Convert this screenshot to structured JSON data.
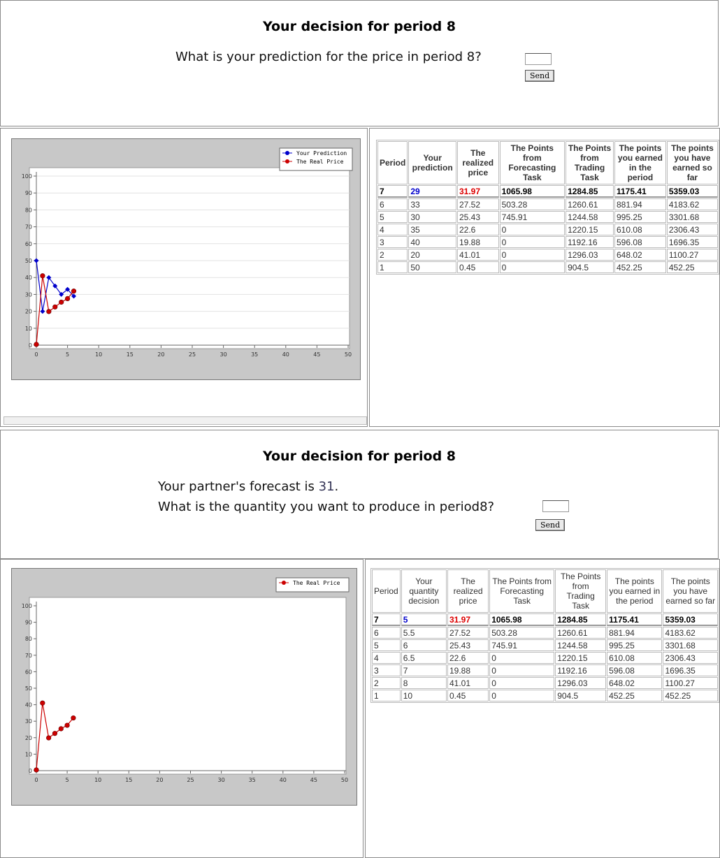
{
  "panels": [
    {
      "heading": "Your decision for period 8",
      "question": "What is your prediction for the price in period 8?",
      "button": "Send",
      "chart": {
        "type": "line",
        "x": [
          0,
          1,
          2,
          3,
          4,
          5,
          6
        ],
        "series": [
          {
            "name": "Your Prediction",
            "color": "#0000cc",
            "values": [
              50,
              20,
              40,
              35,
              30,
              33,
              29
            ]
          },
          {
            "name": "The Real Price",
            "color": "#cc0000",
            "values": [
              0.45,
              41.01,
              19.88,
              22.6,
              25.43,
              27.52,
              31.97
            ]
          }
        ],
        "xlim": [
          0,
          50
        ],
        "xticks": [
          0,
          5,
          10,
          15,
          20,
          25,
          30,
          35,
          40,
          45,
          50
        ],
        "ylim": [
          0,
          100
        ],
        "yticks": [
          0,
          10,
          20,
          30,
          40,
          50,
          60,
          70,
          80,
          90,
          100
        ],
        "grid": true,
        "legend": "upper right"
      },
      "table": {
        "headers": [
          "Period",
          "Your prediction",
          "The realized price",
          "The Points from Forecasting Task",
          "The Points from Trading Task",
          "The points you earned in the period",
          "The points you have earned so far"
        ],
        "rows": [
          [
            7,
            29,
            31.97,
            1065.98,
            1284.85,
            1175.41,
            5359.03
          ],
          [
            6,
            33,
            27.52,
            503.28,
            1260.61,
            881.94,
            4183.62
          ],
          [
            5,
            30,
            25.43,
            745.91,
            1244.58,
            995.25,
            3301.68
          ],
          [
            4,
            35,
            22.6,
            0,
            1220.15,
            610.08,
            2306.43
          ],
          [
            3,
            40,
            19.88,
            0,
            1192.16,
            596.08,
            1696.35
          ],
          [
            2,
            20,
            41.01,
            0,
            1296.03,
            648.02,
            1100.27
          ],
          [
            1,
            50,
            0.45,
            0,
            904.5,
            452.25,
            452.25
          ]
        ]
      }
    },
    {
      "heading": "Your decision for period 8",
      "forecast_text": "Your partner's forecast is",
      "forecast_value": 31,
      "forecast_end": ".",
      "question": "What is the quantity you want to produce in period8?",
      "button": "Send",
      "chart": {
        "type": "line",
        "x": [
          0,
          1,
          2,
          3,
          4,
          5,
          6
        ],
        "series": [
          {
            "name": "The Real Price",
            "color": "#cc0000",
            "values": [
              0.45,
              41.01,
              19.88,
              22.6,
              25.43,
              27.52,
              31.97
            ]
          }
        ],
        "xlim": [
          0,
          50
        ],
        "xticks": [
          0,
          5,
          10,
          15,
          20,
          25,
          30,
          35,
          40,
          45,
          50
        ],
        "ylim": [
          0,
          100
        ],
        "yticks": [
          0,
          10,
          20,
          30,
          40,
          50,
          60,
          70,
          80,
          90,
          100
        ],
        "grid": false,
        "legend": "upper right"
      },
      "table": {
        "headers": [
          "Period",
          "Your quantity decision",
          "The realized price",
          "The Points from Forecasting Task",
          "The Points from Trading Task",
          "The points you earned in the period",
          "The points you have earned so far"
        ],
        "rows": [
          [
            7,
            5,
            31.97,
            1065.98,
            1284.85,
            1175.41,
            5359.03
          ],
          [
            6,
            5.5,
            27.52,
            503.28,
            1260.61,
            881.94,
            4183.62
          ],
          [
            5,
            6,
            25.43,
            745.91,
            1244.58,
            995.25,
            3301.68
          ],
          [
            4,
            6.5,
            22.6,
            0,
            1220.15,
            610.08,
            2306.43
          ],
          [
            3,
            7,
            19.88,
            0,
            1192.16,
            596.08,
            1696.35
          ],
          [
            2,
            8,
            41.01,
            0,
            1296.03,
            648.02,
            1100.27
          ],
          [
            1,
            10,
            0.45,
            0,
            904.5,
            452.25,
            452.25
          ]
        ]
      }
    }
  ]
}
